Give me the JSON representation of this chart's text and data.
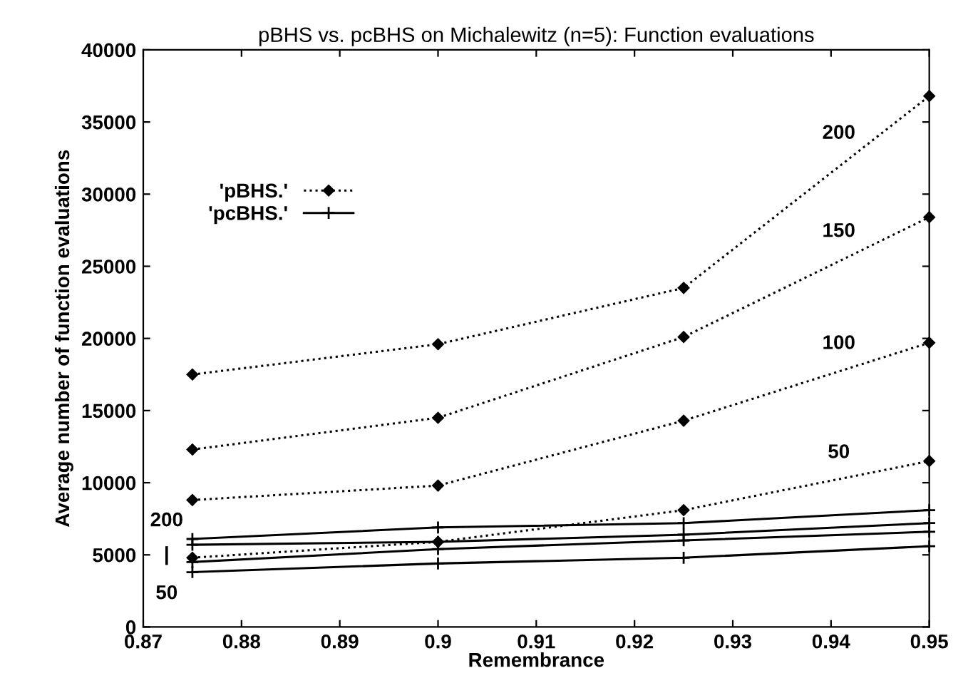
{
  "chart_data": {
    "type": "line",
    "title": "pBHS vs. pcBHS on Michalewitz (n=5): Function evaluations",
    "xlabel": "Remembrance",
    "ylabel": "Average number of function evaluations",
    "x": [
      0.875,
      0.9,
      0.925,
      0.95
    ],
    "series": [
      {
        "name": "'pBHS.'",
        "color": "#000000",
        "marker": "diamond",
        "line_style": "dotted",
        "values": [
          17500,
          19600,
          23500,
          36800
        ]
      },
      {
        "color": "#000000",
        "marker": "diamond",
        "line_style": "dotted",
        "values": [
          12300,
          14500,
          20100,
          28400
        ]
      },
      {
        "color": "#000000",
        "marker": "diamond",
        "line_style": "dotted",
        "values": [
          8800,
          9800,
          14300,
          19700
        ]
      },
      {
        "color": "#000000",
        "marker": "diamond",
        "line_style": "dotted",
        "values": [
          4800,
          5900,
          8100,
          11500
        ]
      },
      {
        "name": "'pcBHS.'",
        "color": "#000000",
        "marker": "cross",
        "line_style": "solid",
        "values": [
          6100,
          6900,
          7200,
          8100
        ]
      },
      {
        "color": "#000000",
        "marker": "cross",
        "line_style": "solid",
        "values": [
          5700,
          5900,
          6400,
          7200
        ]
      },
      {
        "color": "#000000",
        "marker": "cross",
        "line_style": "solid",
        "values": [
          4500,
          5400,
          6000,
          6600
        ]
      },
      {
        "color": "#000000",
        "marker": "cross",
        "line_style": "solid",
        "values": [
          3800,
          4400,
          4800,
          5600
        ]
      }
    ],
    "annotations": [
      "200",
      "150",
      "100",
      "50",
      "200",
      "|",
      "50"
    ],
    "xlim": [
      0.87,
      0.95
    ],
    "xticks": [
      0.87,
      0.88,
      0.89,
      0.9,
      0.91,
      0.92,
      0.93,
      0.94,
      0.95
    ],
    "ylim": [
      0,
      40000
    ],
    "yticks": [
      0,
      5000,
      10000,
      15000,
      20000,
      25000,
      30000,
      35000,
      40000
    ],
    "grid": false,
    "legend": "top left"
  }
}
